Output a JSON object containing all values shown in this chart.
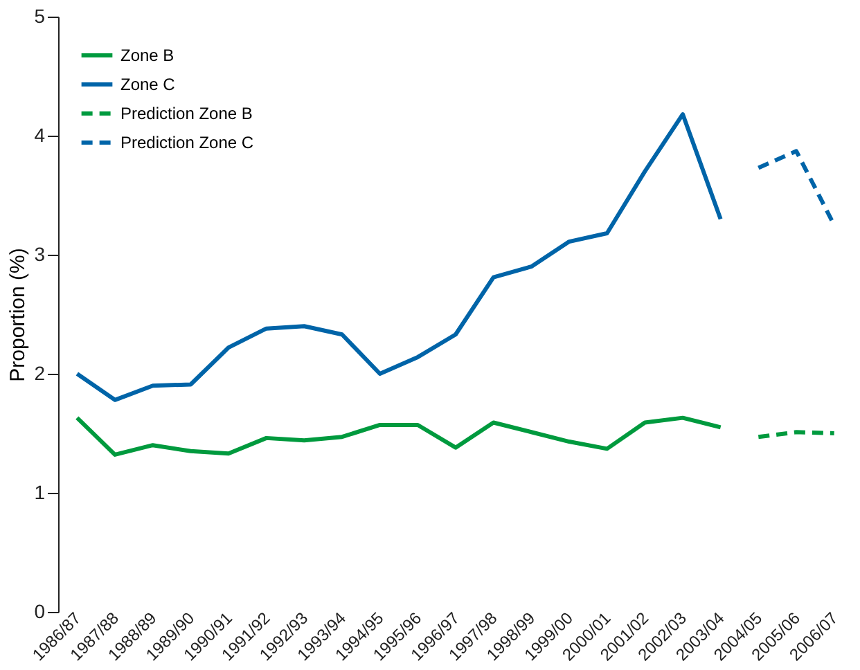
{
  "chart_data": {
    "type": "line",
    "ylabel": "Proportion (%)",
    "categories": [
      "1986/87",
      "1987/88",
      "1988/89",
      "1989/90",
      "1990/91",
      "1991/92",
      "1992/93",
      "1993/94",
      "1994/95",
      "1995/96",
      "1996/97",
      "1997/98",
      "1998/99",
      "1999/00",
      "2000/01",
      "2001/02",
      "2002/03",
      "2003/04",
      "2004/05",
      "2005/06",
      "2006/07"
    ],
    "series": [
      {
        "name": "Zone B",
        "color": "#009a3e",
        "line_style": "solid",
        "values": [
          1.63,
          1.32,
          1.4,
          1.35,
          1.33,
          1.46,
          1.44,
          1.47,
          1.57,
          1.57,
          1.38,
          1.59,
          1.51,
          1.43,
          1.37,
          1.59,
          1.63,
          1.55,
          null,
          null,
          null
        ]
      },
      {
        "name": "Zone C",
        "color": "#0064a8",
        "line_style": "solid",
        "values": [
          2.0,
          1.78,
          1.9,
          1.91,
          2.22,
          2.38,
          2.4,
          2.33,
          2.0,
          2.14,
          2.33,
          2.81,
          2.9,
          3.11,
          3.18,
          3.7,
          4.18,
          3.3,
          null,
          null,
          null
        ]
      },
      {
        "name": "Prediction Zone B",
        "color": "#009a3e",
        "line_style": "dashed",
        "values": [
          null,
          null,
          null,
          null,
          null,
          null,
          null,
          null,
          null,
          null,
          null,
          null,
          null,
          null,
          null,
          null,
          null,
          null,
          1.47,
          1.51,
          1.5
        ]
      },
      {
        "name": "Prediction Zone C",
        "color": "#0064a8",
        "line_style": "dashed",
        "values": [
          null,
          null,
          null,
          null,
          null,
          null,
          null,
          null,
          null,
          null,
          null,
          null,
          null,
          null,
          null,
          null,
          null,
          null,
          3.73,
          3.87,
          3.25
        ]
      }
    ],
    "ylim": [
      0,
      5
    ],
    "yticks": [
      0,
      1,
      2,
      3,
      4,
      5
    ],
    "grid": false,
    "legend": "top left",
    "marker": "none"
  }
}
